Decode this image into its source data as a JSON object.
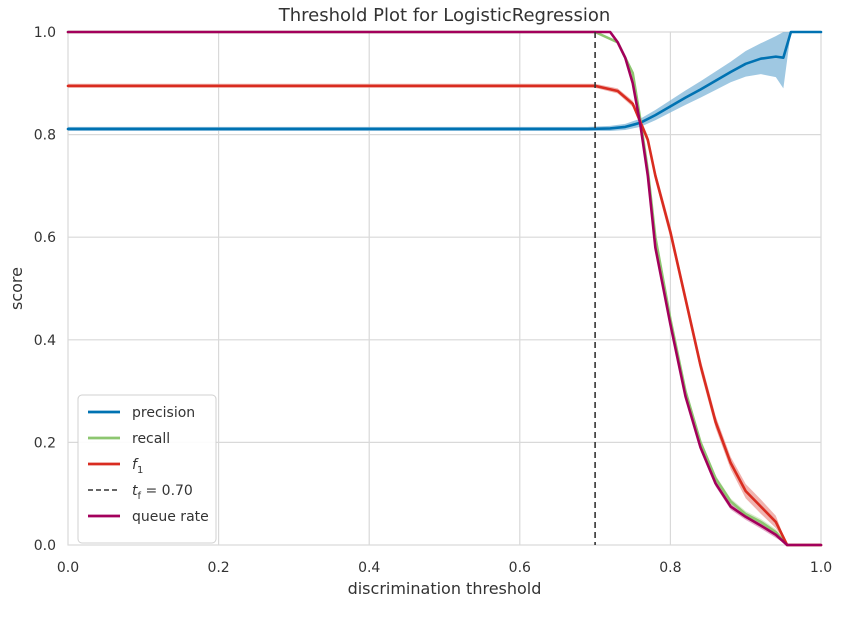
{
  "chart_data": {
    "type": "line",
    "title": "Threshold Plot for LogisticRegression",
    "xlabel": "discrimination threshold",
    "ylabel": "score",
    "xlim": [
      0.0,
      1.0
    ],
    "ylim": [
      0.0,
      1.0
    ],
    "grid": true,
    "legend_position": "lower-left",
    "x_ticks": [
      0.0,
      0.2,
      0.4,
      0.6,
      0.8,
      1.0
    ],
    "y_ticks": [
      0.0,
      0.2,
      0.4,
      0.6,
      0.8,
      1.0
    ],
    "x_tick_labels": [
      "0.0",
      "0.2",
      "0.4",
      "0.6",
      "0.8",
      "1.0"
    ],
    "y_tick_labels": [
      "0.0",
      "0.2",
      "0.4",
      "0.6",
      "0.8",
      "1.0"
    ],
    "series": [
      {
        "name": "precision",
        "color": "#0072B2",
        "band_color": "#7fb6d8",
        "points": [
          [
            0.0,
            0.811
          ],
          [
            0.69,
            0.811
          ],
          [
            0.72,
            0.812
          ],
          [
            0.74,
            0.815
          ],
          [
            0.76,
            0.823
          ],
          [
            0.78,
            0.838
          ],
          [
            0.8,
            0.855
          ],
          [
            0.82,
            0.872
          ],
          [
            0.84,
            0.888
          ],
          [
            0.86,
            0.905
          ],
          [
            0.88,
            0.922
          ],
          [
            0.9,
            0.938
          ],
          [
            0.92,
            0.948
          ],
          [
            0.94,
            0.952
          ],
          [
            0.95,
            0.95
          ],
          [
            0.96,
            1.0
          ],
          [
            1.0,
            1.0
          ]
        ],
        "band": [
          0.004,
          0.004,
          0.005,
          0.006,
          0.008,
          0.01,
          0.012,
          0.014,
          0.016,
          0.018,
          0.02,
          0.025,
          0.03,
          0.04,
          0.06,
          0.0,
          0.0
        ]
      },
      {
        "name": "recall",
        "color": "#8DC670",
        "band_color": "#c9e4b8",
        "points": [
          [
            0.0,
            1.0
          ],
          [
            0.7,
            1.0
          ],
          [
            0.73,
            0.98
          ],
          [
            0.75,
            0.92
          ],
          [
            0.76,
            0.83
          ],
          [
            0.77,
            0.73
          ],
          [
            0.78,
            0.6
          ],
          [
            0.8,
            0.44
          ],
          [
            0.82,
            0.3
          ],
          [
            0.84,
            0.2
          ],
          [
            0.86,
            0.13
          ],
          [
            0.88,
            0.085
          ],
          [
            0.9,
            0.06
          ],
          [
            0.92,
            0.045
          ],
          [
            0.94,
            0.025
          ],
          [
            0.955,
            0.0
          ],
          [
            1.0,
            0.0
          ]
        ],
        "band": [
          0.0,
          0.0,
          0.003,
          0.004,
          0.005,
          0.006,
          0.006,
          0.006,
          0.006,
          0.006,
          0.006,
          0.006,
          0.006,
          0.006,
          0.006,
          0.0,
          0.0
        ]
      },
      {
        "name": "f1",
        "color": "#D92C20",
        "band_color": "#eb9a94",
        "points": [
          [
            0.0,
            0.895
          ],
          [
            0.7,
            0.895
          ],
          [
            0.73,
            0.885
          ],
          [
            0.75,
            0.86
          ],
          [
            0.77,
            0.79
          ],
          [
            0.78,
            0.72
          ],
          [
            0.8,
            0.61
          ],
          [
            0.82,
            0.48
          ],
          [
            0.84,
            0.35
          ],
          [
            0.86,
            0.24
          ],
          [
            0.88,
            0.16
          ],
          [
            0.9,
            0.105
          ],
          [
            0.92,
            0.075
          ],
          [
            0.94,
            0.045
          ],
          [
            0.955,
            0.0
          ],
          [
            1.0,
            0.0
          ]
        ],
        "band": [
          0.004,
          0.004,
          0.005,
          0.006,
          0.008,
          0.01,
          0.012,
          0.012,
          0.012,
          0.012,
          0.012,
          0.014,
          0.014,
          0.012,
          0.0,
          0.0
        ]
      },
      {
        "name": "queue rate",
        "color": "#A3005C",
        "band_color": "#d88fb6",
        "points": [
          [
            0.0,
            1.0
          ],
          [
            0.72,
            1.0
          ],
          [
            0.73,
            0.98
          ],
          [
            0.74,
            0.95
          ],
          [
            0.75,
            0.9
          ],
          [
            0.76,
            0.82
          ],
          [
            0.77,
            0.72
          ],
          [
            0.78,
            0.58
          ],
          [
            0.8,
            0.43
          ],
          [
            0.82,
            0.29
          ],
          [
            0.84,
            0.19
          ],
          [
            0.86,
            0.12
          ],
          [
            0.88,
            0.075
          ],
          [
            0.9,
            0.055
          ],
          [
            0.92,
            0.038
          ],
          [
            0.94,
            0.02
          ],
          [
            0.955,
            0.0
          ],
          [
            1.0,
            0.0
          ]
        ],
        "band": [
          0.0,
          0.0,
          0.004,
          0.005,
          0.006,
          0.006,
          0.006,
          0.006,
          0.006,
          0.006,
          0.006,
          0.006,
          0.006,
          0.006,
          0.006,
          0.006,
          0.0,
          0.0
        ]
      }
    ],
    "threshold_line": {
      "x": 0.7,
      "label": "= 0.70",
      "color": "#333333"
    }
  },
  "legend": {
    "items": [
      {
        "label": "precision",
        "style": "solid",
        "color": "#0072B2"
      },
      {
        "label": "recall",
        "style": "solid",
        "color": "#8DC670"
      },
      {
        "label": "f",
        "subscript": "1",
        "style": "solid",
        "color": "#D92C20"
      },
      {
        "label": "t",
        "subscript": "f",
        "suffix": " = 0.70",
        "style": "dashed",
        "color": "#333333"
      },
      {
        "label": "queue rate",
        "style": "solid",
        "color": "#A3005C"
      }
    ]
  }
}
